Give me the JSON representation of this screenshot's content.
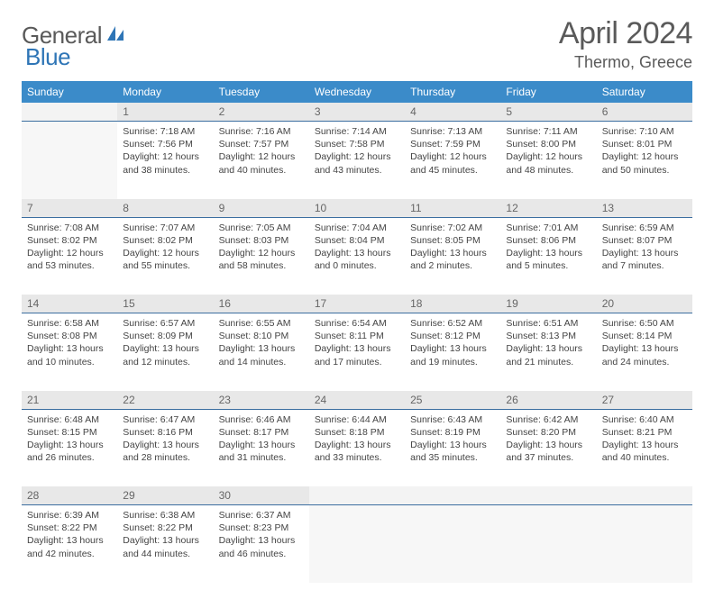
{
  "brand": {
    "part1": "General",
    "part2": "Blue"
  },
  "title": "April 2024",
  "location": "Thermo, Greece",
  "colors": {
    "header_bg": "#3b8bc9",
    "header_text": "#ffffff",
    "daynum_bg": "#e8e8e8",
    "daynum_border": "#3b6ea0",
    "body_text": "#444444",
    "title_text": "#5a5a5a",
    "logo_blue": "#2e75b6"
  },
  "weekdays": [
    "Sunday",
    "Monday",
    "Tuesday",
    "Wednesday",
    "Thursday",
    "Friday",
    "Saturday"
  ],
  "weeks": [
    {
      "nums": [
        "",
        "1",
        "2",
        "3",
        "4",
        "5",
        "6"
      ],
      "cells": [
        null,
        {
          "sr": "Sunrise: 7:18 AM",
          "ss": "Sunset: 7:56 PM",
          "d1": "Daylight: 12 hours",
          "d2": "and 38 minutes."
        },
        {
          "sr": "Sunrise: 7:16 AM",
          "ss": "Sunset: 7:57 PM",
          "d1": "Daylight: 12 hours",
          "d2": "and 40 minutes."
        },
        {
          "sr": "Sunrise: 7:14 AM",
          "ss": "Sunset: 7:58 PM",
          "d1": "Daylight: 12 hours",
          "d2": "and 43 minutes."
        },
        {
          "sr": "Sunrise: 7:13 AM",
          "ss": "Sunset: 7:59 PM",
          "d1": "Daylight: 12 hours",
          "d2": "and 45 minutes."
        },
        {
          "sr": "Sunrise: 7:11 AM",
          "ss": "Sunset: 8:00 PM",
          "d1": "Daylight: 12 hours",
          "d2": "and 48 minutes."
        },
        {
          "sr": "Sunrise: 7:10 AM",
          "ss": "Sunset: 8:01 PM",
          "d1": "Daylight: 12 hours",
          "d2": "and 50 minutes."
        }
      ]
    },
    {
      "nums": [
        "7",
        "8",
        "9",
        "10",
        "11",
        "12",
        "13"
      ],
      "cells": [
        {
          "sr": "Sunrise: 7:08 AM",
          "ss": "Sunset: 8:02 PM",
          "d1": "Daylight: 12 hours",
          "d2": "and 53 minutes."
        },
        {
          "sr": "Sunrise: 7:07 AM",
          "ss": "Sunset: 8:02 PM",
          "d1": "Daylight: 12 hours",
          "d2": "and 55 minutes."
        },
        {
          "sr": "Sunrise: 7:05 AM",
          "ss": "Sunset: 8:03 PM",
          "d1": "Daylight: 12 hours",
          "d2": "and 58 minutes."
        },
        {
          "sr": "Sunrise: 7:04 AM",
          "ss": "Sunset: 8:04 PM",
          "d1": "Daylight: 13 hours",
          "d2": "and 0 minutes."
        },
        {
          "sr": "Sunrise: 7:02 AM",
          "ss": "Sunset: 8:05 PM",
          "d1": "Daylight: 13 hours",
          "d2": "and 2 minutes."
        },
        {
          "sr": "Sunrise: 7:01 AM",
          "ss": "Sunset: 8:06 PM",
          "d1": "Daylight: 13 hours",
          "d2": "and 5 minutes."
        },
        {
          "sr": "Sunrise: 6:59 AM",
          "ss": "Sunset: 8:07 PM",
          "d1": "Daylight: 13 hours",
          "d2": "and 7 minutes."
        }
      ]
    },
    {
      "nums": [
        "14",
        "15",
        "16",
        "17",
        "18",
        "19",
        "20"
      ],
      "cells": [
        {
          "sr": "Sunrise: 6:58 AM",
          "ss": "Sunset: 8:08 PM",
          "d1": "Daylight: 13 hours",
          "d2": "and 10 minutes."
        },
        {
          "sr": "Sunrise: 6:57 AM",
          "ss": "Sunset: 8:09 PM",
          "d1": "Daylight: 13 hours",
          "d2": "and 12 minutes."
        },
        {
          "sr": "Sunrise: 6:55 AM",
          "ss": "Sunset: 8:10 PM",
          "d1": "Daylight: 13 hours",
          "d2": "and 14 minutes."
        },
        {
          "sr": "Sunrise: 6:54 AM",
          "ss": "Sunset: 8:11 PM",
          "d1": "Daylight: 13 hours",
          "d2": "and 17 minutes."
        },
        {
          "sr": "Sunrise: 6:52 AM",
          "ss": "Sunset: 8:12 PM",
          "d1": "Daylight: 13 hours",
          "d2": "and 19 minutes."
        },
        {
          "sr": "Sunrise: 6:51 AM",
          "ss": "Sunset: 8:13 PM",
          "d1": "Daylight: 13 hours",
          "d2": "and 21 minutes."
        },
        {
          "sr": "Sunrise: 6:50 AM",
          "ss": "Sunset: 8:14 PM",
          "d1": "Daylight: 13 hours",
          "d2": "and 24 minutes."
        }
      ]
    },
    {
      "nums": [
        "21",
        "22",
        "23",
        "24",
        "25",
        "26",
        "27"
      ],
      "cells": [
        {
          "sr": "Sunrise: 6:48 AM",
          "ss": "Sunset: 8:15 PM",
          "d1": "Daylight: 13 hours",
          "d2": "and 26 minutes."
        },
        {
          "sr": "Sunrise: 6:47 AM",
          "ss": "Sunset: 8:16 PM",
          "d1": "Daylight: 13 hours",
          "d2": "and 28 minutes."
        },
        {
          "sr": "Sunrise: 6:46 AM",
          "ss": "Sunset: 8:17 PM",
          "d1": "Daylight: 13 hours",
          "d2": "and 31 minutes."
        },
        {
          "sr": "Sunrise: 6:44 AM",
          "ss": "Sunset: 8:18 PM",
          "d1": "Daylight: 13 hours",
          "d2": "and 33 minutes."
        },
        {
          "sr": "Sunrise: 6:43 AM",
          "ss": "Sunset: 8:19 PM",
          "d1": "Daylight: 13 hours",
          "d2": "and 35 minutes."
        },
        {
          "sr": "Sunrise: 6:42 AM",
          "ss": "Sunset: 8:20 PM",
          "d1": "Daylight: 13 hours",
          "d2": "and 37 minutes."
        },
        {
          "sr": "Sunrise: 6:40 AM",
          "ss": "Sunset: 8:21 PM",
          "d1": "Daylight: 13 hours",
          "d2": "and 40 minutes."
        }
      ]
    },
    {
      "nums": [
        "28",
        "29",
        "30",
        "",
        "",
        "",
        ""
      ],
      "cells": [
        {
          "sr": "Sunrise: 6:39 AM",
          "ss": "Sunset: 8:22 PM",
          "d1": "Daylight: 13 hours",
          "d2": "and 42 minutes."
        },
        {
          "sr": "Sunrise: 6:38 AM",
          "ss": "Sunset: 8:22 PM",
          "d1": "Daylight: 13 hours",
          "d2": "and 44 minutes."
        },
        {
          "sr": "Sunrise: 6:37 AM",
          "ss": "Sunset: 8:23 PM",
          "d1": "Daylight: 13 hours",
          "d2": "and 46 minutes."
        },
        null,
        null,
        null,
        null
      ]
    }
  ]
}
